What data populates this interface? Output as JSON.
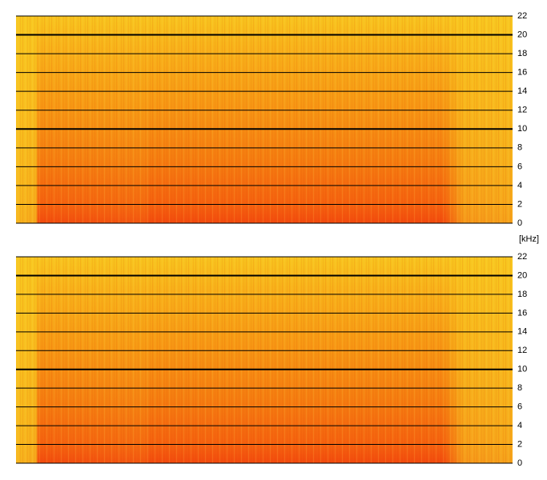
{
  "chart_data": [
    {
      "type": "spectrogram",
      "ylim": [
        0,
        22
      ],
      "yticks": [
        0,
        2,
        4,
        6,
        8,
        10,
        12,
        14,
        16,
        18,
        20,
        22
      ],
      "grid": true,
      "major_gridlines": [
        10,
        20
      ],
      "y_label": "[kHz]"
    },
    {
      "type": "spectrogram",
      "ylim": [
        0,
        22
      ],
      "yticks": [
        0,
        2,
        4,
        6,
        8,
        10,
        12,
        14,
        16,
        18,
        20,
        22
      ],
      "grid": true,
      "major_gridlines": [
        10,
        20
      ]
    }
  ]
}
